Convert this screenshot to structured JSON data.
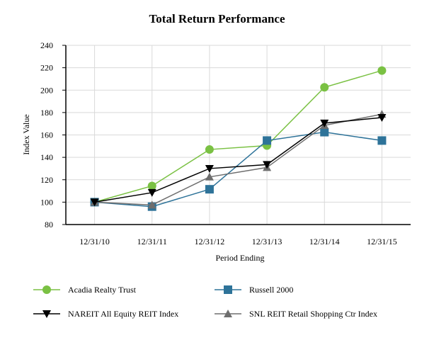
{
  "chart_data": {
    "type": "line",
    "title": "Total Return Performance",
    "xlabel": "Period Ending",
    "ylabel": "Index Value",
    "categories": [
      "12/31/10",
      "12/31/11",
      "12/31/12",
      "12/31/13",
      "12/31/14",
      "12/31/15"
    ],
    "ylim": [
      80,
      240
    ],
    "yticks": [
      80,
      100,
      120,
      140,
      160,
      180,
      200,
      220,
      240
    ],
    "grid": true,
    "legend_position": "bottom",
    "series": [
      {
        "name": "Acadia Realty Trust",
        "color": "#7ac143",
        "marker": "circle",
        "values": [
          100,
          114.5,
          147,
          150.5,
          202.5,
          217.5
        ]
      },
      {
        "name": "Russell 2000",
        "color": "#2e7399",
        "marker": "square",
        "values": [
          100,
          96,
          111.5,
          155,
          162.5,
          155
        ]
      },
      {
        "name": "NAREIT All Equity REIT Index",
        "color": "#000000",
        "marker": "triangle-down",
        "values": [
          100,
          108.5,
          130,
          133.5,
          170.5,
          175.5
        ]
      },
      {
        "name": "SNL REIT Retail Shopping Ctr Index",
        "color": "#6e6e6e",
        "marker": "triangle-up",
        "values": [
          100,
          97.5,
          122.5,
          131,
          168.5,
          178.5
        ]
      }
    ]
  }
}
